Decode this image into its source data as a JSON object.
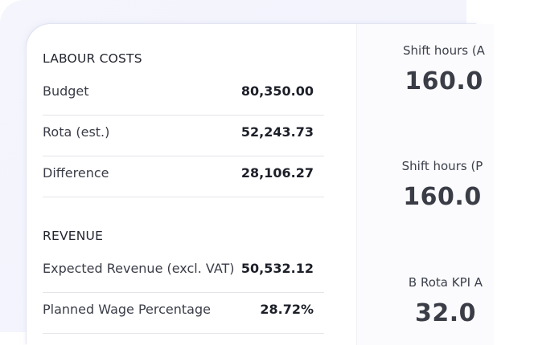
{
  "labour": {
    "title": "LABOUR COSTS",
    "rows": [
      {
        "label": "Budget",
        "value": "80,350.00"
      },
      {
        "label": "Rota (est.)",
        "value": "52,243.73"
      },
      {
        "label": "Difference",
        "value": "28,106.27"
      }
    ]
  },
  "revenue": {
    "title": "REVENUE",
    "rows": [
      {
        "label": "Expected Revenue (excl. VAT)",
        "value": "50,532.12"
      },
      {
        "label": "Planned Wage Percentage",
        "value": "28.72%"
      }
    ]
  },
  "kpis": [
    {
      "label": "Shift hours (A",
      "value": "160.0"
    },
    {
      "label": "Shift hours (P",
      "value": "160.0"
    },
    {
      "label": "B Rota KPI A",
      "value": "32.0"
    }
  ]
}
